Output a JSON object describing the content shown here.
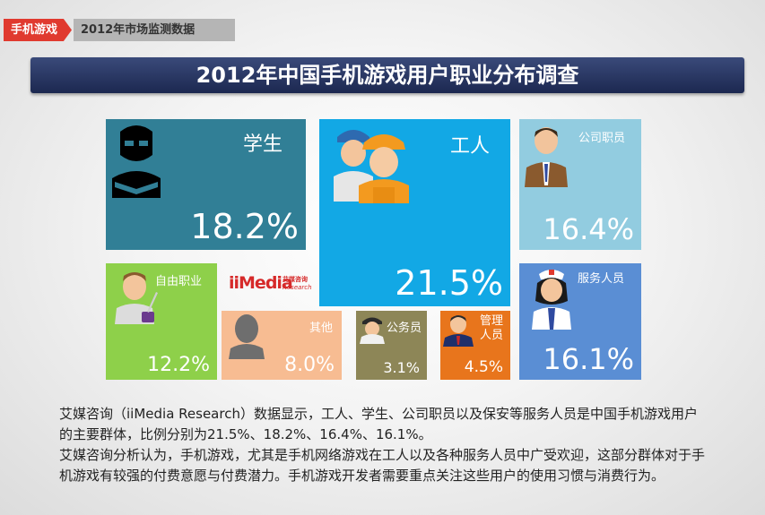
{
  "header": {
    "tag": "手机游戏",
    "subtag": "2012年市场监测数据"
  },
  "logo": {
    "text": "iiMedia",
    "cn": "艾媒咨询",
    "en": "Research"
  },
  "chart_data": {
    "type": "table",
    "title": "2012年中国手机游戏用户职业分布调查",
    "categories": [
      "学生",
      "工人",
      "公司职员",
      "自由职业",
      "其他",
      "公务员",
      "管理人员",
      "服务人员"
    ],
    "values": [
      18.2,
      21.5,
      16.4,
      12.2,
      8.0,
      3.1,
      4.5,
      16.1
    ],
    "value_labels": [
      "18.2%",
      "21.5%",
      "16.4%",
      "12.2%",
      "8.0%",
      "3.1%",
      "4.5%",
      "16.1%"
    ],
    "colors": [
      "#317f96",
      "#12a8e5",
      "#92cce0",
      "#8ed04a",
      "#f7bc92",
      "#8d8657",
      "#e8751c",
      "#5a8ed4"
    ],
    "icons": [
      "reader-icon",
      "workers-icon",
      "businessman-icon",
      "writer-icon",
      "silhouette-icon",
      "officer-icon",
      "manager-icon",
      "nurse-icon"
    ]
  },
  "description": {
    "p1": "艾媒咨询（iiMedia Research）数据显示，工人、学生、公司职员以及保安等服务人员是中国手机游戏用户的主要群体，比例分别为21.5%、18.2%、16.4%、16.1%。",
    "p2": "艾媒咨询分析认为，手机游戏，尤其是手机网络游戏在工人以及各种服务人员中广受欢迎，这部分群体对于手机游戏有较强的付费意愿与付费潜力。手机游戏开发者需要重点关注这些用户的使用习惯与消费行为。"
  }
}
